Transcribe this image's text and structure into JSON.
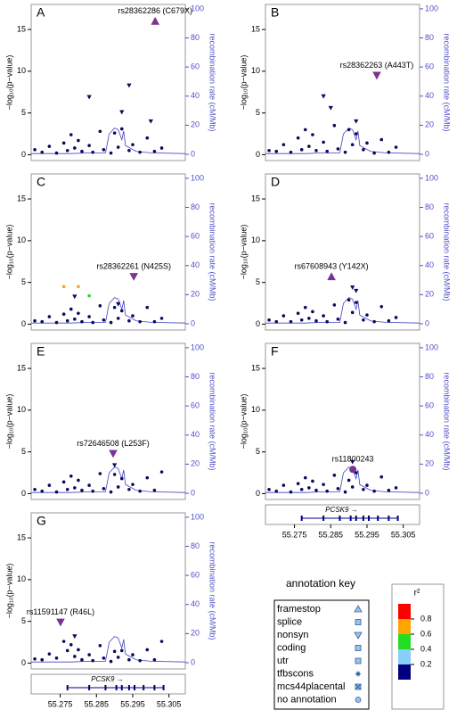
{
  "chart_data": [
    {
      "type": "scatter",
      "label": "A",
      "lead_label": "rs28362286 (C679X)",
      "lead": {
        "x": 55.3012,
        "y": 16,
        "marker": "up",
        "color": "#7b3294"
      },
      "ylabel": "−log₁₀(p−value)",
      "y2label": "recombination rate (cM/Mb)",
      "xlim": [
        55.267,
        55.3095
      ],
      "ylim": [
        -0.7,
        18
      ],
      "yticks": [
        0,
        5,
        10,
        15
      ],
      "y2lim": [
        -4.3,
        103
      ],
      "y2ticks": [
        0,
        20,
        40,
        60,
        80,
        100
      ],
      "series": [
        {
          "color": "#0a0a5e",
          "marker": "circle",
          "x": [
            55.268,
            55.27,
            55.272,
            55.274,
            55.276,
            55.277,
            55.278,
            55.279,
            55.28,
            55.281,
            55.283,
            55.284,
            55.286,
            55.287,
            55.289,
            55.29,
            55.291,
            55.292,
            55.294,
            55.295,
            55.297,
            55.299,
            55.301,
            55.303
          ],
          "y": [
            0.6,
            0.3,
            1.0,
            0.2,
            1.4,
            0.5,
            2.4,
            0.8,
            1.7,
            0.4,
            1.1,
            0.3,
            2.8,
            0.6,
            0.2,
            2.6,
            0.9,
            3.1,
            0.5,
            1.2,
            0.3,
            2.0,
            0.4,
            0.8
          ]
        },
        {
          "color": "#0a0a5e",
          "marker": "down",
          "x": [
            55.283,
            55.294,
            55.3,
            55.292
          ],
          "y": [
            6.9,
            8.3,
            4.0,
            5.1
          ]
        }
      ]
    },
    {
      "type": "scatter",
      "label": "B",
      "lead_label": "rs28362263 (A443T)",
      "lead": {
        "x": 55.2977,
        "y": 9.5,
        "marker": "down",
        "color": "#7b3294"
      },
      "ylabel": "−log₁₀(p−value)",
      "y2label": "recombination rate (cM/Mb)",
      "xlim": [
        55.267,
        55.3095
      ],
      "ylim": [
        -0.7,
        18
      ],
      "yticks": [
        0,
        5,
        10,
        15
      ],
      "y2lim": [
        -4.3,
        103
      ],
      "y2ticks": [
        0,
        20,
        40,
        60,
        80,
        100
      ],
      "series": [
        {
          "color": "#0a0a5e",
          "marker": "circle",
          "x": [
            55.268,
            55.27,
            55.272,
            55.274,
            55.276,
            55.277,
            55.278,
            55.279,
            55.28,
            55.281,
            55.283,
            55.284,
            55.286,
            55.287,
            55.289,
            55.29,
            55.291,
            55.292,
            55.294,
            55.295,
            55.297,
            55.299,
            55.301,
            55.303
          ],
          "y": [
            0.5,
            0.4,
            1.2,
            0.3,
            2.0,
            0.6,
            3.0,
            1.0,
            2.4,
            0.5,
            1.5,
            0.4,
            3.5,
            0.7,
            0.3,
            3.0,
            1.2,
            2.5,
            0.6,
            1.4,
            0.2,
            1.8,
            0.3,
            0.9
          ]
        },
        {
          "color": "#0a0a5e",
          "marker": "down",
          "x": [
            55.283,
            55.285,
            55.292
          ],
          "y": [
            7.0,
            5.6,
            4.0
          ]
        }
      ]
    },
    {
      "type": "scatter",
      "label": "C",
      "lead_label": "rs28362261 (N425S)",
      "lead": {
        "x": 55.2953,
        "y": 5.7,
        "marker": "down",
        "color": "#7b3294"
      },
      "ylabel": "−log₁₀(p−value)",
      "y2label": "recombination rate (cM/Mb)",
      "xlim": [
        55.267,
        55.3095
      ],
      "ylim": [
        -0.7,
        18
      ],
      "yticks": [
        0,
        5,
        10,
        15
      ],
      "y2lim": [
        -4.3,
        103
      ],
      "y2ticks": [
        0,
        20,
        40,
        60,
        80,
        100
      ],
      "series": [
        {
          "color": "#0a0a5e",
          "marker": "circle",
          "x": [
            55.268,
            55.27,
            55.272,
            55.274,
            55.276,
            55.277,
            55.278,
            55.279,
            55.28,
            55.281,
            55.283,
            55.284,
            55.286,
            55.287,
            55.289,
            55.29,
            55.291,
            55.292,
            55.294,
            55.295,
            55.297,
            55.299,
            55.301,
            55.303
          ],
          "y": [
            0.4,
            0.3,
            0.9,
            0.2,
            1.2,
            0.4,
            1.8,
            0.6,
            1.3,
            0.3,
            0.9,
            0.2,
            2.2,
            0.5,
            0.2,
            2.0,
            0.7,
            1.6,
            0.4,
            1.0,
            0.3,
            2.0,
            0.3,
            0.7
          ]
        },
        {
          "color": "#0a0a5e",
          "marker": "down",
          "x": [
            55.279,
            55.291
          ],
          "y": [
            3.3,
            2.4
          ]
        },
        {
          "color": "#f5a623",
          "marker": "circle",
          "x": [
            55.276,
            55.28
          ],
          "y": [
            4.5,
            4.5
          ]
        },
        {
          "color": "#33cc33",
          "marker": "circle",
          "x": [
            55.283
          ],
          "y": [
            3.4
          ]
        }
      ]
    },
    {
      "type": "scatter",
      "label": "D",
      "lead_label": "rs67608943 (Y142X)",
      "lead": {
        "x": 55.2852,
        "y": 5.7,
        "marker": "up",
        "color": "#7b3294"
      },
      "ylabel": "−log₁₀(p−value)",
      "y2label": "recombination rate (cM/Mb)",
      "xlim": [
        55.267,
        55.3095
      ],
      "ylim": [
        -0.7,
        18
      ],
      "yticks": [
        0,
        5,
        10,
        15
      ],
      "y2lim": [
        -4.3,
        103
      ],
      "y2ticks": [
        0,
        20,
        40,
        60,
        80,
        100
      ],
      "series": [
        {
          "color": "#0a0a5e",
          "marker": "circle",
          "x": [
            55.268,
            55.27,
            55.272,
            55.274,
            55.276,
            55.277,
            55.278,
            55.279,
            55.28,
            55.281,
            55.283,
            55.284,
            55.286,
            55.287,
            55.289,
            55.29,
            55.291,
            55.292,
            55.294,
            55.295,
            55.297,
            55.299,
            55.301,
            55.303
          ],
          "y": [
            0.5,
            0.3,
            1.0,
            0.3,
            1.3,
            0.5,
            2.0,
            0.7,
            1.5,
            0.4,
            1.0,
            0.3,
            2.3,
            0.6,
            0.2,
            2.9,
            1.4,
            2.6,
            0.5,
            1.1,
            0.3,
            2.1,
            0.4,
            0.8
          ]
        },
        {
          "color": "#0a0a5e",
          "marker": "down",
          "x": [
            55.291,
            55.292
          ],
          "y": [
            4.4,
            4.0
          ]
        }
      ]
    },
    {
      "type": "scatter",
      "label": "E",
      "lead_label": "rs72646508 (L253F)",
      "lead": {
        "x": 55.2896,
        "y": 4.8,
        "marker": "down",
        "color": "#7b3294"
      },
      "ylabel": "−log₁₀(p−value)",
      "y2label": "recombination rate (cM/Mb)",
      "xlim": [
        55.267,
        55.3095
      ],
      "ylim": [
        -0.7,
        18
      ],
      "yticks": [
        0,
        5,
        10,
        15
      ],
      "y2lim": [
        -4.3,
        103
      ],
      "y2ticks": [
        0,
        20,
        40,
        60,
        80,
        100
      ],
      "series": [
        {
          "color": "#0a0a5e",
          "marker": "circle",
          "x": [
            55.268,
            55.27,
            55.272,
            55.274,
            55.276,
            55.277,
            55.278,
            55.279,
            55.28,
            55.281,
            55.283,
            55.284,
            55.286,
            55.287,
            55.289,
            55.29,
            55.291,
            55.292,
            55.294,
            55.295,
            55.297,
            55.299,
            55.301,
            55.303
          ],
          "y": [
            0.5,
            0.3,
            1.0,
            0.2,
            1.4,
            0.5,
            2.1,
            0.7,
            1.6,
            0.4,
            1.0,
            0.3,
            2.4,
            0.6,
            0.2,
            2.3,
            0.8,
            1.8,
            0.5,
            1.1,
            0.3,
            1.9,
            0.4,
            2.6
          ]
        },
        {
          "color": "#0a0a5e",
          "marker": "down",
          "x": [
            55.29
          ],
          "y": [
            3.4
          ]
        }
      ]
    },
    {
      "type": "scatter",
      "label": "F",
      "lead_label": "rs11800243",
      "lead": {
        "x": 55.2911,
        "y": 2.9,
        "marker": "circle",
        "color": "#7b3294"
      },
      "ylabel": "−log₁₀(p−value)",
      "y2label": "recombination rate (cM/Mb)",
      "xlim": [
        55.267,
        55.3095
      ],
      "ylim": [
        -0.7,
        18
      ],
      "yticks": [
        0,
        5,
        10,
        15
      ],
      "y2lim": [
        -4.3,
        103
      ],
      "y2ticks": [
        0,
        20,
        40,
        60,
        80,
        100
      ],
      "xticks": [
        55.275,
        55.285,
        55.295,
        55.305
      ],
      "series": [
        {
          "color": "#0a0a5e",
          "marker": "circle",
          "x": [
            55.268,
            55.27,
            55.272,
            55.274,
            55.276,
            55.277,
            55.278,
            55.279,
            55.28,
            55.281,
            55.283,
            55.284,
            55.286,
            55.287,
            55.289,
            55.29,
            55.291,
            55.292,
            55.294,
            55.295,
            55.297,
            55.299,
            55.301,
            55.303
          ],
          "y": [
            0.5,
            0.3,
            1.0,
            0.2,
            1.2,
            0.5,
            1.9,
            0.7,
            1.5,
            0.4,
            1.1,
            0.3,
            2.2,
            0.6,
            0.2,
            1.6,
            0.8,
            2.5,
            0.5,
            1.0,
            0.3,
            2.0,
            0.4,
            0.7
          ]
        },
        {
          "color": "#0a0a5e",
          "marker": "down",
          "x": [
            55.291
          ],
          "y": [
            3.8
          ]
        }
      ]
    },
    {
      "type": "scatter",
      "label": "G",
      "lead_label": "rs11591147 (R46L)",
      "lead": {
        "x": 55.2751,
        "y": 4.9,
        "marker": "down",
        "color": "#7b3294"
      },
      "ylabel": "−log₁₀(p−value)",
      "y2label": "recombination rate (cM/Mb)",
      "xlim": [
        55.267,
        55.3095
      ],
      "ylim": [
        -0.7,
        18
      ],
      "yticks": [
        0,
        5,
        10,
        15
      ],
      "y2lim": [
        -4.3,
        103
      ],
      "y2ticks": [
        0,
        20,
        40,
        60,
        80,
        100
      ],
      "xticks": [
        55.275,
        55.285,
        55.295,
        55.305
      ],
      "series": [
        {
          "color": "#0a0a5e",
          "marker": "circle",
          "x": [
            55.268,
            55.27,
            55.272,
            55.274,
            55.276,
            55.277,
            55.278,
            55.279,
            55.28,
            55.281,
            55.283,
            55.284,
            55.286,
            55.287,
            55.289,
            55.29,
            55.291,
            55.292,
            55.294,
            55.295,
            55.297,
            55.299,
            55.301,
            55.303
          ],
          "y": [
            0.5,
            0.4,
            1.1,
            0.6,
            2.6,
            1.5,
            2.2,
            0.8,
            1.6,
            0.4,
            1.0,
            0.3,
            2.1,
            0.6,
            0.2,
            1.4,
            0.7,
            1.5,
            0.4,
            1.0,
            0.3,
            1.6,
            0.4,
            2.6
          ]
        },
        {
          "color": "#0a0a5e",
          "marker": "down",
          "x": [
            55.279
          ],
          "y": [
            3.2
          ]
        }
      ]
    }
  ],
  "recombination": {
    "color": "#4040c0",
    "x": [
      55.267,
      55.278,
      55.283,
      55.2875,
      55.2885,
      55.29,
      55.291,
      55.292,
      55.2925,
      55.293,
      55.296,
      55.3,
      55.3095
    ],
    "y": [
      0.5,
      0.5,
      1,
      1,
      14,
      18,
      17,
      10,
      16,
      6,
      2,
      1,
      0.5
    ]
  },
  "gene_label": "PCSK9 →",
  "annotation_key": {
    "title": "annotation key",
    "items": [
      "framestop",
      "splice",
      "nonsyn",
      "coding",
      "utr",
      "tfbscons",
      "mcs44placental",
      "no annotation"
    ],
    "r2_title": "r²",
    "r2_colors": [
      "#000080",
      "#87cefa",
      "#22dd22",
      "#ffa500",
      "#ff0000"
    ],
    "r2_ticks": [
      0.2,
      0.4,
      0.6,
      0.8
    ],
    "r2_lim": [
      0,
      1
    ]
  }
}
